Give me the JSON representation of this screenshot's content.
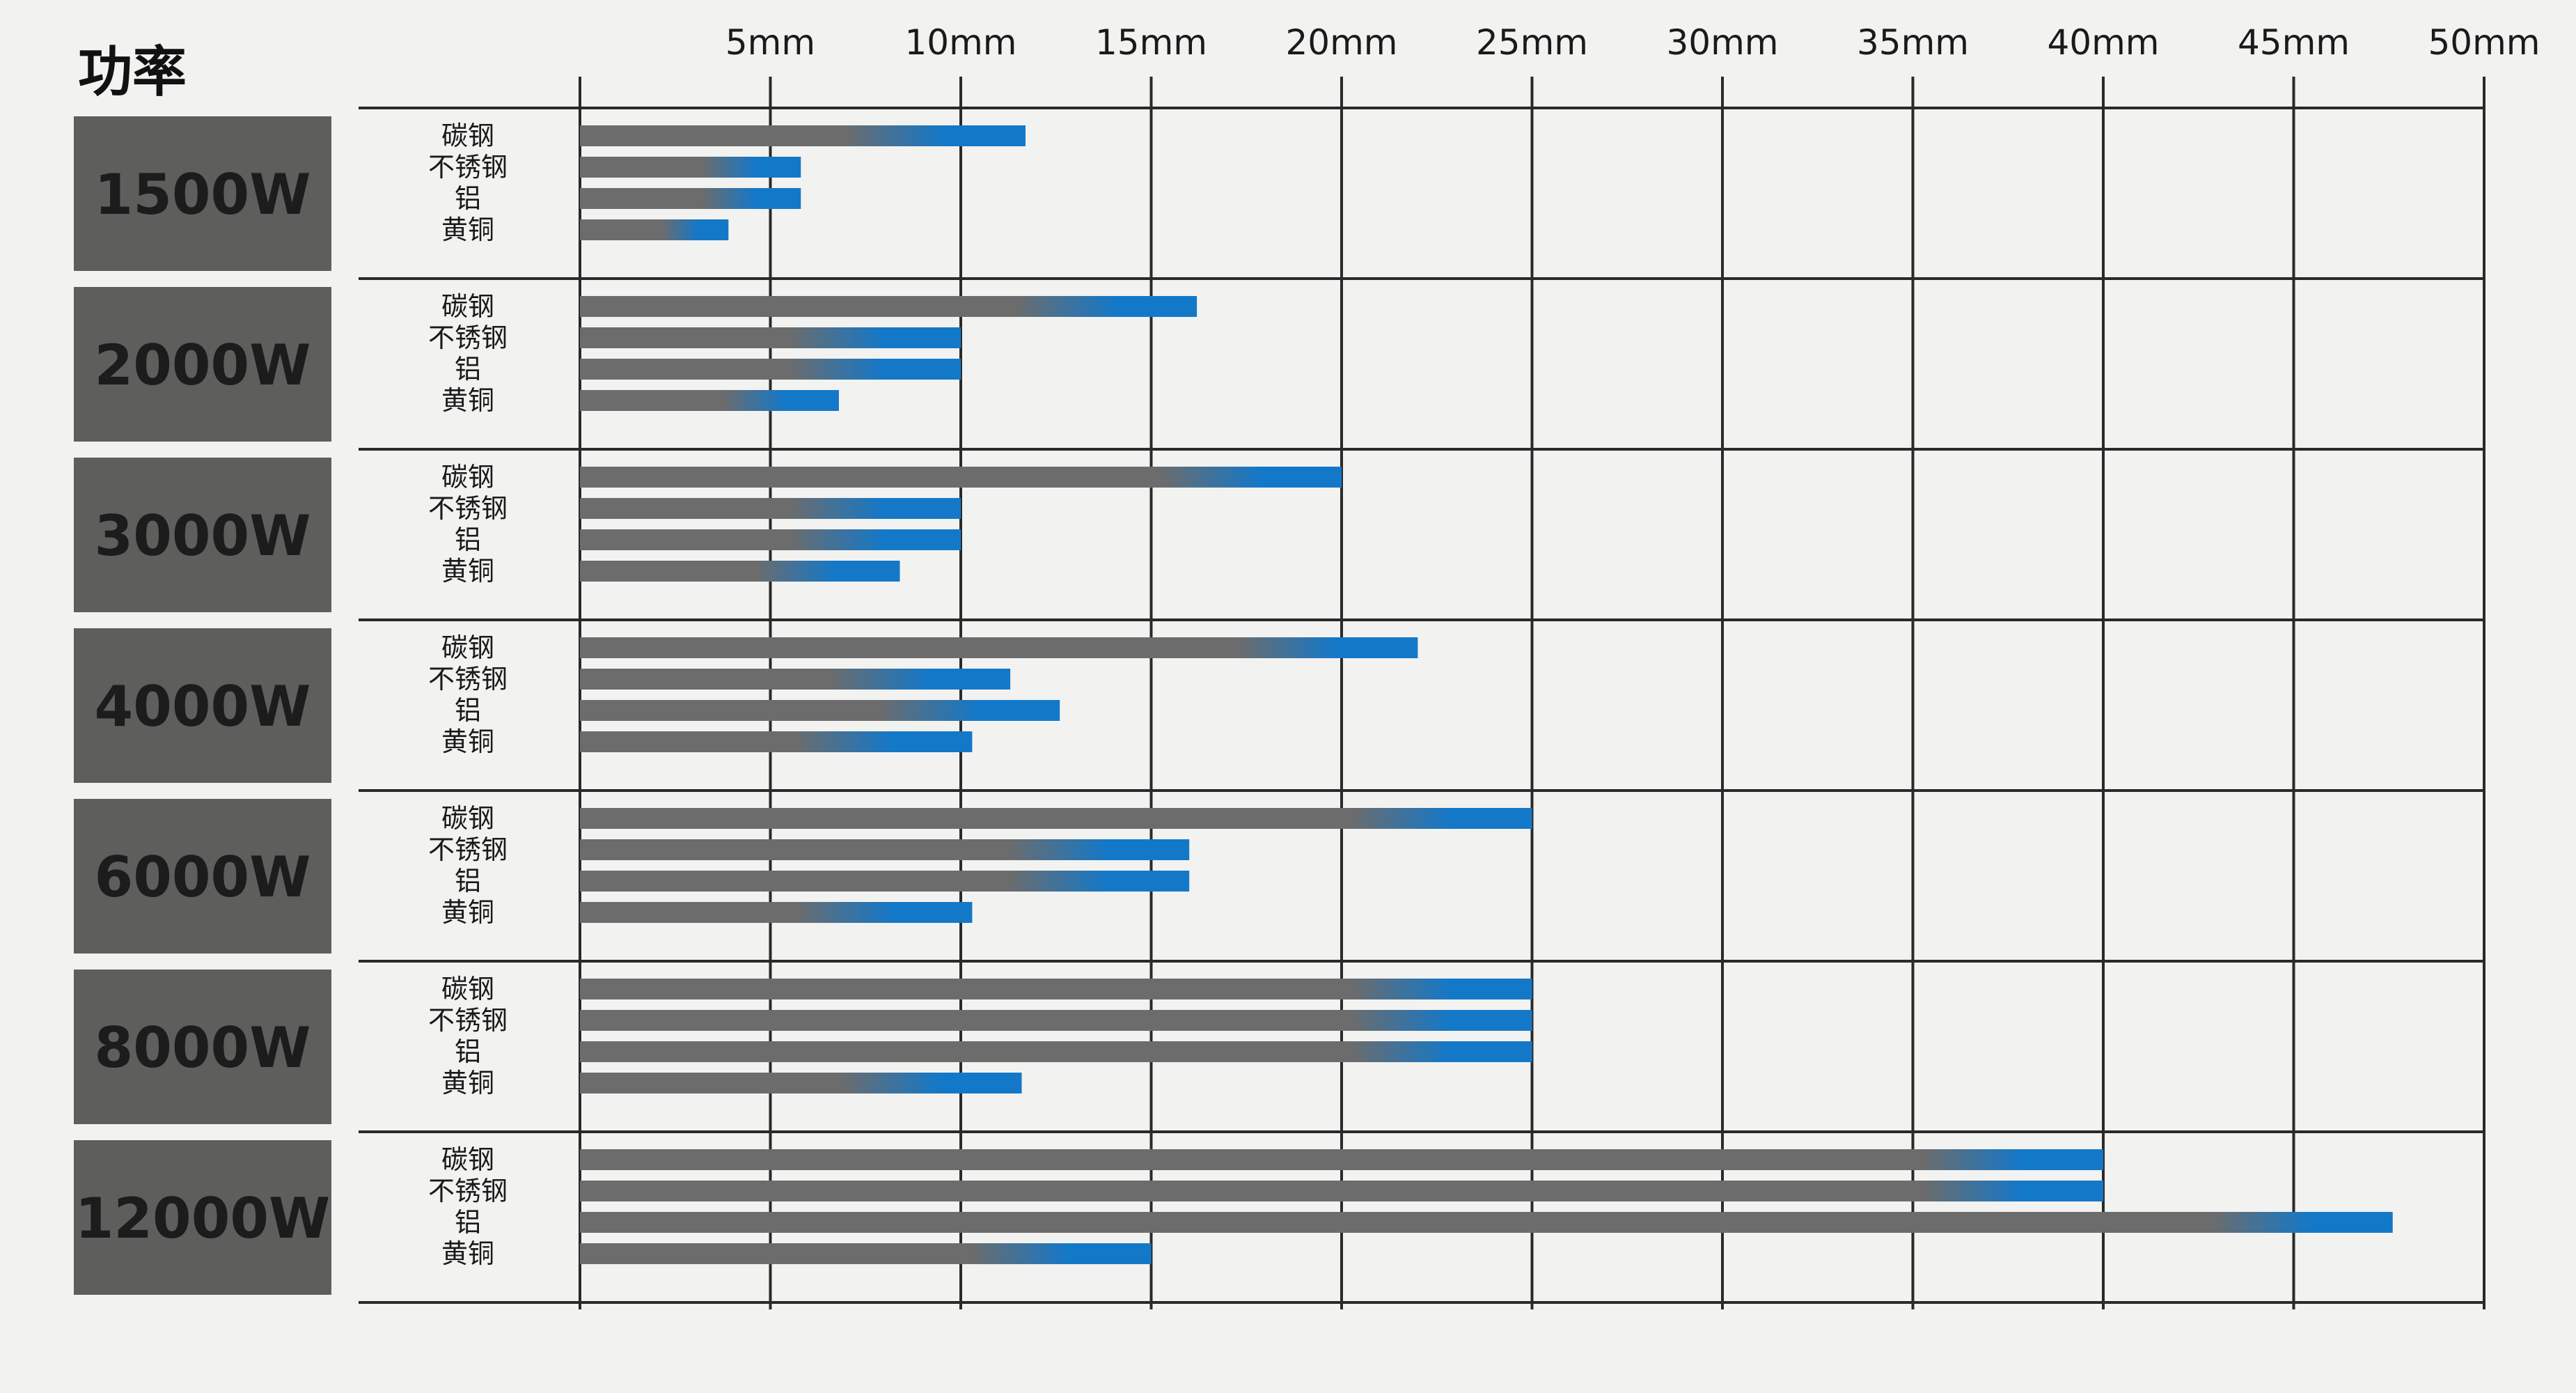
{
  "chart_data": {
    "type": "bar",
    "orientation": "horizontal",
    "title": "",
    "header_label": "功率",
    "x_tick_labels": [
      "5mm",
      "10mm",
      "15mm",
      "20mm",
      "25mm",
      "30mm",
      "35mm",
      "40mm",
      "45mm",
      "50mm"
    ],
    "x_ticks": [
      5,
      10,
      15,
      20,
      25,
      30,
      35,
      40,
      45,
      50
    ],
    "xlim": [
      0,
      50
    ],
    "grid": true,
    "materials": [
      "碳钢",
      "不锈钢",
      "铝",
      "黄铜"
    ],
    "groups": [
      {
        "power": "1500W",
        "values": [
          11.7,
          5.8,
          5.8,
          3.9
        ]
      },
      {
        "power": "2000W",
        "values": [
          16.2,
          10.0,
          10.0,
          6.8
        ]
      },
      {
        "power": "3000W",
        "values": [
          20.0,
          10.0,
          10.0,
          8.4
        ]
      },
      {
        "power": "4000W",
        "values": [
          22.0,
          11.3,
          12.6,
          10.3
        ]
      },
      {
        "power": "6000W",
        "values": [
          25.0,
          16.0,
          16.0,
          10.3
        ]
      },
      {
        "power": "8000W",
        "values": [
          25.0,
          25.0,
          25.0,
          11.6
        ]
      },
      {
        "power": "12000W",
        "values": [
          40.0,
          40.0,
          47.6,
          15.0
        ]
      }
    ],
    "colors": {
      "bar_base": "#6c6c6c",
      "bar_tip": "#1478c8",
      "power_box": "#5e5e5c",
      "power_text": "#1c1c1c",
      "grid": "#2a2a2a"
    }
  }
}
